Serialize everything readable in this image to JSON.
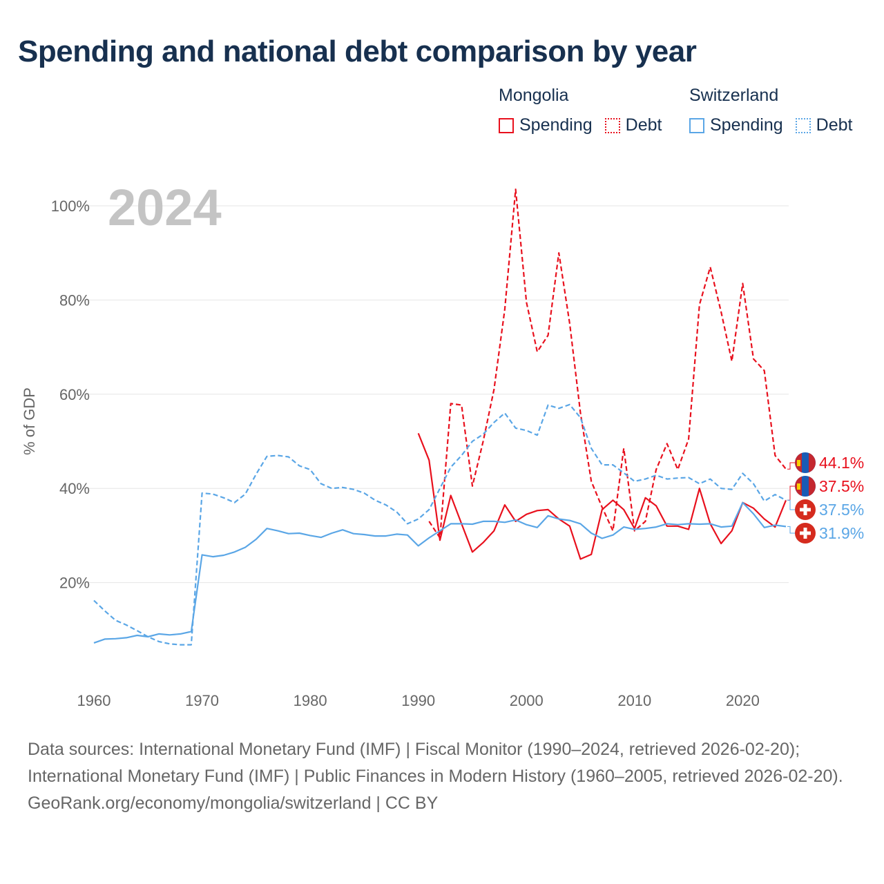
{
  "title": "Spending and national debt comparison by year",
  "legend": {
    "groups": [
      {
        "name": "Mongolia",
        "color": "#e8101d",
        "spending": "Spending",
        "debt": "Debt"
      },
      {
        "name": "Switzerland",
        "color": "#5aa6e6",
        "spending": "Spending",
        "debt": "Debt"
      }
    ]
  },
  "footer": {
    "sources": "Data sources: International Monetary Fund (IMF) | Fiscal Monitor (1990–2024, retrieved 2026-02-20); International Monetary Fund (IMF) | Public Finances in Modern History (1960–2005, retrieved 2026-02-20).",
    "credit": "GeoRank.org/economy/mongolia/switzerland | CC BY"
  },
  "chart_data": {
    "type": "line",
    "year_label": "2024",
    "ylabel": "% of GDP",
    "xlim": [
      1960,
      2024
    ],
    "ylim": [
      0,
      110
    ],
    "xticks": [
      1960,
      1970,
      1980,
      1990,
      2000,
      2010,
      2020
    ],
    "yticks": [
      20,
      40,
      60,
      80,
      100
    ],
    "ytick_labels": [
      "20%",
      "40%",
      "60%",
      "80%",
      "100%"
    ],
    "series": [
      {
        "name": "Mongolia Debt",
        "country": "Mongolia",
        "metric": "Debt",
        "color": "#e8101d",
        "dashed": true,
        "x": [
          1991,
          1992,
          1993,
          1994,
          1995,
          1996,
          1997,
          1998,
          1999,
          2000,
          2001,
          2002,
          2003,
          2004,
          2005,
          2006,
          2007,
          2008,
          2009,
          2010,
          2011,
          2012,
          2013,
          2014,
          2015,
          2016,
          2017,
          2018,
          2019,
          2020,
          2021,
          2022,
          2023,
          2024
        ],
        "y": [
          33.0,
          29.5,
          58.0,
          57.7,
          40.5,
          50.0,
          61.0,
          78.0,
          103.5,
          79.5,
          69.0,
          72.5,
          90.0,
          75.0,
          56.0,
          41.5,
          36.0,
          31.0,
          48.5,
          31.0,
          33.0,
          44.0,
          49.5,
          44.0,
          50.5,
          79.0,
          87.0,
          77.5,
          67.0,
          83.5,
          67.5,
          65.0,
          47.0,
          44.1
        ]
      },
      {
        "name": "Mongolia Spending",
        "country": "Mongolia",
        "metric": "Spending",
        "color": "#e8101d",
        "dashed": false,
        "x": [
          1990,
          1991,
          1992,
          1993,
          1994,
          1995,
          1996,
          1997,
          1998,
          1999,
          2000,
          2001,
          2002,
          2003,
          2004,
          2005,
          2006,
          2007,
          2008,
          2009,
          2010,
          2011,
          2012,
          2013,
          2014,
          2015,
          2016,
          2017,
          2018,
          2019,
          2020,
          2021,
          2022,
          2023,
          2024
        ],
        "y": [
          51.7,
          46.0,
          29.0,
          38.5,
          32.5,
          26.5,
          28.5,
          31.0,
          36.5,
          33.0,
          34.5,
          35.3,
          35.5,
          33.5,
          32.0,
          25.0,
          26.0,
          35.5,
          37.5,
          35.5,
          31.5,
          38.0,
          36.3,
          32.0,
          32.0,
          31.3,
          40.0,
          32.5,
          28.3,
          31.0,
          37.0,
          35.8,
          33.5,
          31.8,
          37.5
        ]
      },
      {
        "name": "Switzerland Debt",
        "country": "Switzerland",
        "metric": "Debt",
        "color": "#5aa6e6",
        "dashed": true,
        "x": [
          1960,
          1961,
          1962,
          1963,
          1964,
          1965,
          1966,
          1967,
          1968,
          1969,
          1970,
          1971,
          1972,
          1973,
          1974,
          1975,
          1976,
          1977,
          1978,
          1979,
          1980,
          1981,
          1982,
          1983,
          1984,
          1985,
          1986,
          1987,
          1988,
          1989,
          1990,
          1991,
          1992,
          1993,
          1994,
          1995,
          1996,
          1997,
          1998,
          1999,
          2000,
          2001,
          2002,
          2003,
          2004,
          2005,
          2006,
          2007,
          2008,
          2009,
          2010,
          2011,
          2012,
          2013,
          2014,
          2015,
          2016,
          2017,
          2018,
          2019,
          2020,
          2021,
          2022,
          2023,
          2024
        ],
        "y": [
          16.2,
          14.0,
          12.0,
          11.0,
          9.8,
          8.5,
          7.5,
          7.0,
          6.8,
          6.8,
          39.0,
          38.8,
          38.0,
          37.0,
          38.8,
          43.0,
          46.8,
          47.0,
          46.7,
          44.8,
          44.0,
          41.0,
          40.0,
          40.2,
          39.8,
          39.0,
          37.5,
          36.5,
          35.0,
          32.5,
          33.5,
          35.5,
          40.0,
          44.5,
          47.0,
          50.0,
          51.5,
          54.0,
          56.0,
          52.8,
          52.3,
          51.3,
          57.7,
          57.0,
          57.8,
          55.0,
          48.5,
          45.0,
          45.0,
          43.3,
          41.5,
          42.0,
          42.8,
          42.0,
          42.2,
          42.3,
          41.0,
          42.0,
          40.0,
          39.8,
          43.2,
          41.0,
          37.3,
          38.7,
          37.5
        ]
      },
      {
        "name": "Switzerland Spending",
        "country": "Switzerland",
        "metric": "Spending",
        "color": "#5aa6e6",
        "dashed": false,
        "x": [
          1960,
          1961,
          1962,
          1963,
          1964,
          1965,
          1966,
          1967,
          1968,
          1969,
          1970,
          1971,
          1972,
          1973,
          1974,
          1975,
          1976,
          1977,
          1978,
          1979,
          1980,
          1981,
          1982,
          1983,
          1984,
          1985,
          1986,
          1987,
          1988,
          1989,
          1990,
          1991,
          1992,
          1993,
          1994,
          1995,
          1996,
          1997,
          1998,
          1999,
          2000,
          2001,
          2002,
          2003,
          2004,
          2005,
          2006,
          2007,
          2008,
          2009,
          2010,
          2011,
          2012,
          2013,
          2014,
          2015,
          2016,
          2017,
          2018,
          2019,
          2020,
          2021,
          2022,
          2023,
          2024
        ],
        "y": [
          7.2,
          8.0,
          8.1,
          8.3,
          8.8,
          8.5,
          9.1,
          8.9,
          9.1,
          9.6,
          25.9,
          25.5,
          25.8,
          26.5,
          27.5,
          29.2,
          31.5,
          31.0,
          30.4,
          30.5,
          30.0,
          29.6,
          30.5,
          31.2,
          30.4,
          30.2,
          29.9,
          29.9,
          30.3,
          30.1,
          27.8,
          29.5,
          31.0,
          32.5,
          32.5,
          32.4,
          33.0,
          33.0,
          32.8,
          33.3,
          32.3,
          31.7,
          34.2,
          33.5,
          33.2,
          32.5,
          30.5,
          29.4,
          30.1,
          31.8,
          31.3,
          31.5,
          31.8,
          32.5,
          32.3,
          32.5,
          32.4,
          32.5,
          31.8,
          32.0,
          37.0,
          34.6,
          31.7,
          32.2,
          31.9
        ]
      }
    ],
    "end_labels": [
      {
        "text": "44.1%",
        "country": "Mongolia",
        "value": 44.1
      },
      {
        "text": "37.5%",
        "country": "Mongolia",
        "value": 37.5
      },
      {
        "text": "37.5%",
        "country": "Switzerland",
        "value": 37.5
      },
      {
        "text": "31.9%",
        "country": "Switzerland",
        "value": 31.9
      }
    ]
  }
}
